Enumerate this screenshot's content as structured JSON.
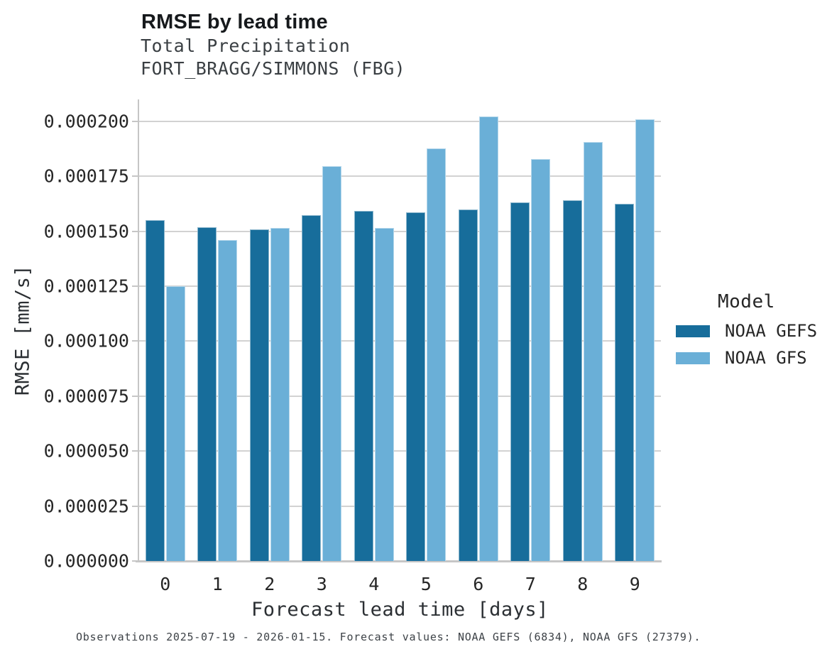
{
  "header": {
    "title": "RMSE by lead time",
    "subtitle": "Total Precipitation",
    "station": "FORT_BRAGG/SIMMONS (FBG)"
  },
  "legend": {
    "title": "Model",
    "items": [
      {
        "label": "NOAA GEFS",
        "color": "#176d9b"
      },
      {
        "label": "NOAA GFS",
        "color": "#6aafd7"
      }
    ]
  },
  "footer": {
    "caption": "Observations 2025-07-19 - 2026-01-15. Forecast values: NOAA GEFS (6834), NOAA GFS (27379)."
  },
  "colors": {
    "gefs_bar": "#176d9b",
    "gfs_bar": "#6aafd7",
    "gridline": "#d2d2d2",
    "axis": "#c6c6c6",
    "tick_text": "#262626"
  },
  "chart_data": {
    "type": "bar",
    "title": "RMSE by lead time",
    "subtitle": "Total Precipitation",
    "station": "FORT_BRAGG/SIMMONS (FBG)",
    "categories": [
      0,
      1,
      2,
      3,
      4,
      5,
      6,
      7,
      8,
      9
    ],
    "series": [
      {
        "name": "NOAA GEFS",
        "color": "#176d9b",
        "values": [
          0.000155,
          0.000152,
          0.000151,
          0.0001575,
          0.0001594,
          0.0001587,
          0.0001599,
          0.0001633,
          0.0001641,
          0.0001624
        ]
      },
      {
        "name": "NOAA GFS",
        "color": "#6aafd7",
        "values": [
          0.000125,
          0.000146,
          0.0001515,
          0.0001797,
          0.0001516,
          0.0001877,
          0.0002024,
          0.0001829,
          0.0001906,
          0.000201
        ]
      }
    ],
    "xlabel": "Forecast lead time [days]",
    "ylabel": "RMSE [mm/s]",
    "ylim": [
      0,
      0.00021
    ],
    "yticks": [
      {
        "v": 0.0,
        "label": "0.000000"
      },
      {
        "v": 2.5e-05,
        "label": "0.000025"
      },
      {
        "v": 5e-05,
        "label": "0.000050"
      },
      {
        "v": 7.5e-05,
        "label": "0.000075"
      },
      {
        "v": 0.0001,
        "label": "0.000100"
      },
      {
        "v": 0.000125,
        "label": "0.000125"
      },
      {
        "v": 0.00015,
        "label": "0.000150"
      },
      {
        "v": 0.000175,
        "label": "0.000175"
      },
      {
        "v": 0.0002,
        "label": "0.000200"
      }
    ],
    "grid": true,
    "legend_position": "right"
  }
}
